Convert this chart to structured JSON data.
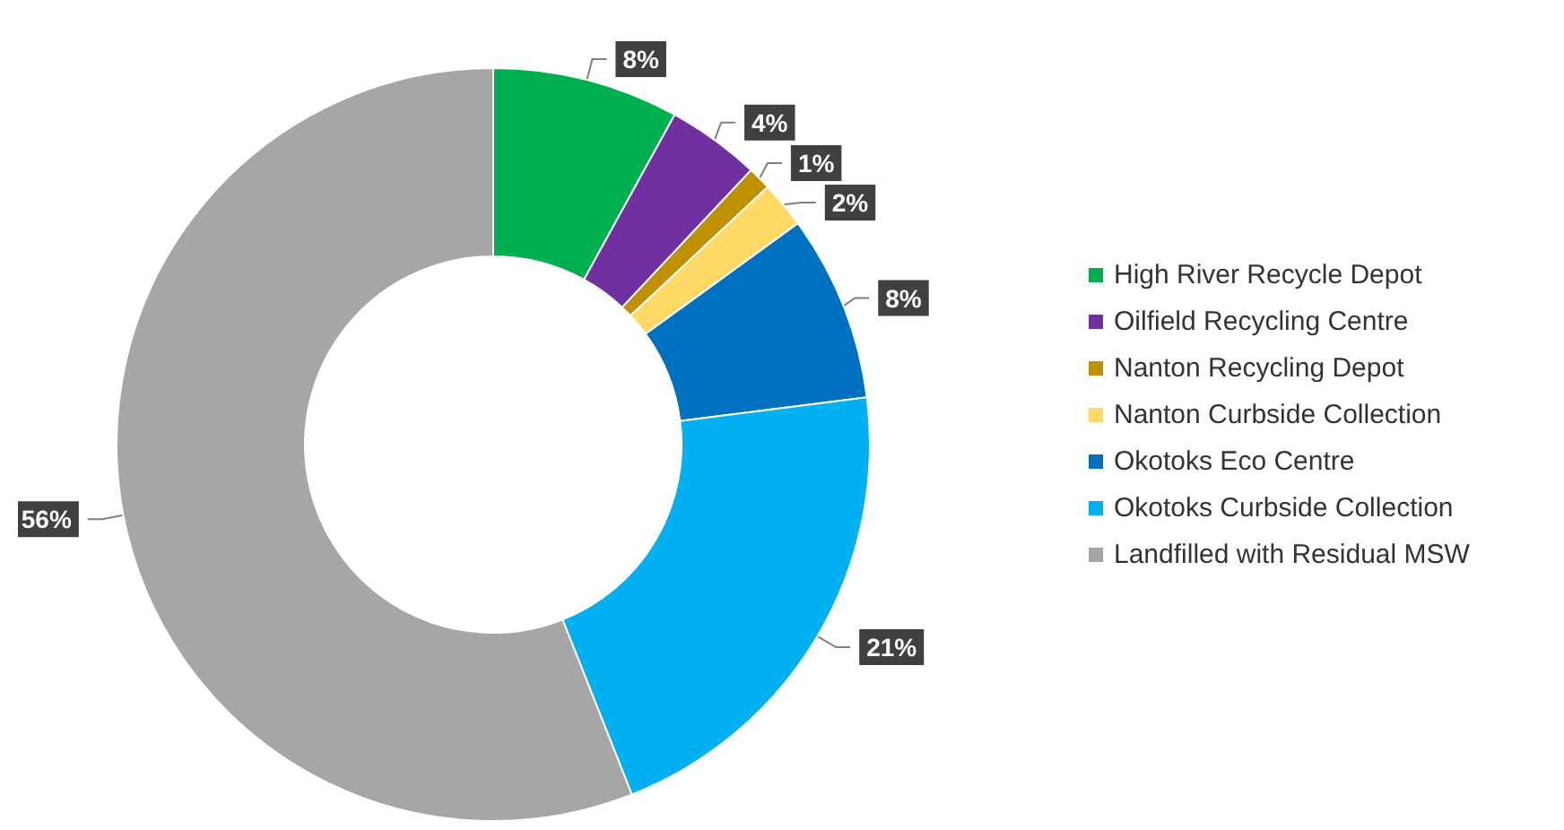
{
  "chart_data": {
    "type": "donut",
    "categories": [
      "High River Recycle Depot",
      "Oilfield Recycling Centre",
      "Nanton Recycling Depot",
      "Nanton Curbside Collection",
      "Okotoks Eco Centre",
      "Okotoks Curbside Collection",
      "Landfilled with Residual MSW"
    ],
    "values": [
      8,
      4,
      1,
      2,
      8,
      21,
      56
    ],
    "colors": [
      "#00b050",
      "#7030a0",
      "#bf9000",
      "#ffd966",
      "#0070c0",
      "#00b0f0",
      "#a6a6a6"
    ],
    "value_labels": [
      "8%",
      "4%",
      "1%",
      "2%",
      "8%",
      "21%",
      "56%"
    ],
    "legend": "right"
  }
}
